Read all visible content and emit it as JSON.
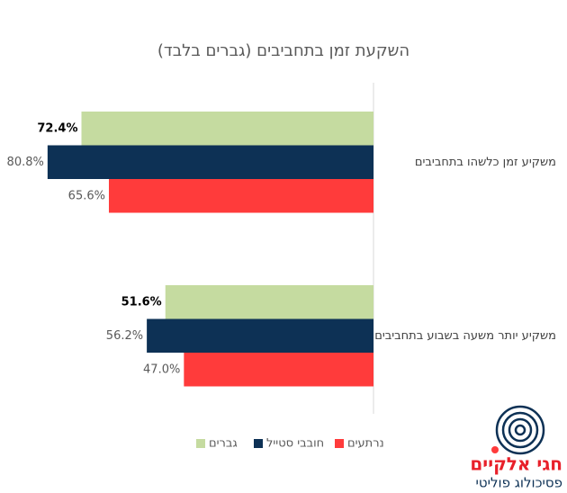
{
  "chart_data": {
    "type": "hbar",
    "title": "השקעת זמן בתחביבים (גברים בלבד)",
    "categories": [
      "משקיע זמן כלשהו בתחביבים",
      "משקיע יותר משעה בשבוע בתחביבים"
    ],
    "series": [
      {
        "name": "גברים",
        "color": "#c5dba0",
        "values": [
          72.4,
          51.6
        ],
        "value_labels": [
          "72.4%",
          "51.6%"
        ]
      },
      {
        "name": "חובבי סטייל",
        "color": "#0d3155",
        "values": [
          80.8,
          56.2
        ],
        "value_labels": [
          "80.8%",
          "56.2%"
        ]
      },
      {
        "name": "נרתעים",
        "color": "#ff3b3b",
        "values": [
          65.6,
          47.0
        ],
        "value_labels": [
          "65.6%",
          "47.0%"
        ]
      }
    ],
    "xlim": [
      0,
      83
    ]
  },
  "brand": {
    "name": "חגי אלקיים",
    "tagline": "פסיכולוג פוליטי"
  }
}
